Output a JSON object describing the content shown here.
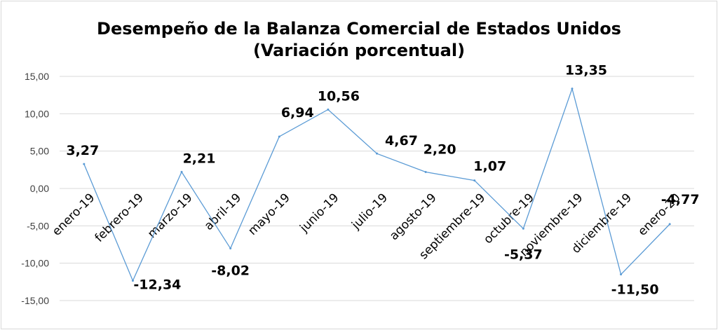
{
  "chart_data": {
    "type": "line",
    "title": "Desempeño de la Balanza Comercial de Estados Unidos",
    "subtitle": "(Variación porcentual)",
    "categories": [
      "enero-19",
      "febrero-19",
      "marzo-19",
      "abril-19",
      "mayo-19",
      "junio-19",
      "julio-19",
      "agosto-19",
      "septiembre-19",
      "octubre-19",
      "noviembre-19",
      "diciembre-19",
      "enero-20"
    ],
    "series": [
      {
        "values": [
          3.27,
          -12.34,
          2.21,
          -8.02,
          6.94,
          10.56,
          4.67,
          2.2,
          1.07,
          -5.37,
          13.35,
          -11.5,
          -4.77
        ]
      }
    ],
    "data_labels": [
      "3,27",
      "-12,34",
      "2,21",
      "-8,02",
      "6,94",
      "10,56",
      "4,67",
      "2,20",
      "1,07",
      "-5,37",
      "13,35",
      "-11,50",
      "-4,77"
    ],
    "yticks": [
      "-15,00",
      "-10,00",
      "-5,00",
      "0,00",
      "5,00",
      "10,00",
      "15,00"
    ],
    "ylim": [
      -15,
      15
    ],
    "ystep": 5,
    "grid": true,
    "legend": "none",
    "colors": {
      "line": "#5b9bd5",
      "grid": "#d9d9d9"
    }
  }
}
